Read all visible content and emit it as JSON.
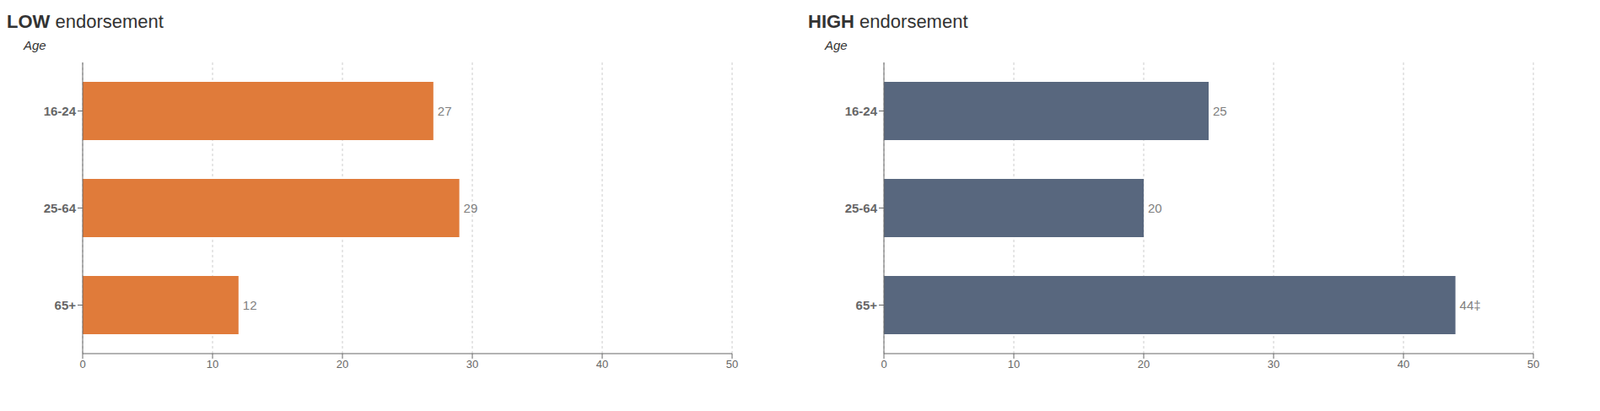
{
  "chart_data": [
    {
      "type": "bar",
      "orientation": "horizontal",
      "title": "LOW endorsement",
      "ylabel": "Age",
      "categories": [
        "16-24",
        "25-64",
        "65+"
      ],
      "values": [
        27,
        29,
        12
      ],
      "color": "#E07B3A",
      "xlim": [
        0,
        50
      ],
      "xticks": [
        0,
        10,
        20,
        30,
        40,
        50
      ],
      "grid": true,
      "data_labels": true
    },
    {
      "type": "bar",
      "orientation": "horizontal",
      "title": "HIGH endorsement",
      "ylabel": "Age",
      "categories": [
        "16-24",
        "25-64",
        "65+"
      ],
      "values": [
        25,
        20,
        44
      ],
      "value_labels": [
        "25",
        "20",
        "44‡"
      ],
      "color": "#58677E",
      "xlim": [
        0,
        50
      ],
      "xticks": [
        0,
        10,
        20,
        30,
        40,
        50
      ],
      "grid": true,
      "data_labels": true
    }
  ]
}
